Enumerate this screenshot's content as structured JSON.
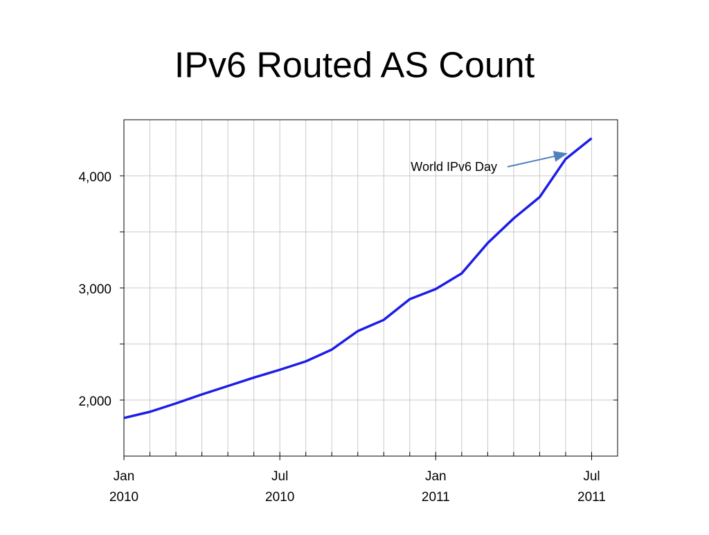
{
  "chart_data": {
    "type": "line",
    "title": "IPv6 Routed AS Count",
    "x": [
      "2010-01",
      "2010-02",
      "2010-03",
      "2010-04",
      "2010-05",
      "2010-06",
      "2010-07",
      "2010-08",
      "2010-09",
      "2010-10",
      "2010-11",
      "2010-12",
      "2011-01",
      "2011-02",
      "2011-03",
      "2011-04",
      "2011-05",
      "2011-06",
      "2011-07"
    ],
    "series": [
      {
        "name": "IPv6 Routed AS Count",
        "color": "#1c1ce8",
        "values": [
          1840,
          1895,
          1970,
          2050,
          2125,
          2200,
          2270,
          2345,
          2450,
          2615,
          2715,
          2900,
          2990,
          3130,
          3400,
          3620,
          3810,
          4150,
          4335
        ]
      }
    ],
    "xlim": [
      "2010-01",
      "2011-08"
    ],
    "xticks": [
      {
        "value": "2010-01",
        "label": "Jan",
        "year": "2010"
      },
      {
        "value": "2010-07",
        "label": "Jul",
        "year": "2010"
      },
      {
        "value": "2011-01",
        "label": "Jan",
        "year": "2011"
      },
      {
        "value": "2011-07",
        "label": "Jul",
        "year": "2011"
      }
    ],
    "ylim": [
      1500,
      4500
    ],
    "yticks": [
      {
        "value": 2000,
        "label": "2,000"
      },
      {
        "value": 3000,
        "label": "3,000"
      },
      {
        "value": 4000,
        "label": "4,000"
      }
    ],
    "minor_yticks": [
      2500,
      3500
    ],
    "grid": true,
    "annotation": "World IPv6 Day"
  }
}
